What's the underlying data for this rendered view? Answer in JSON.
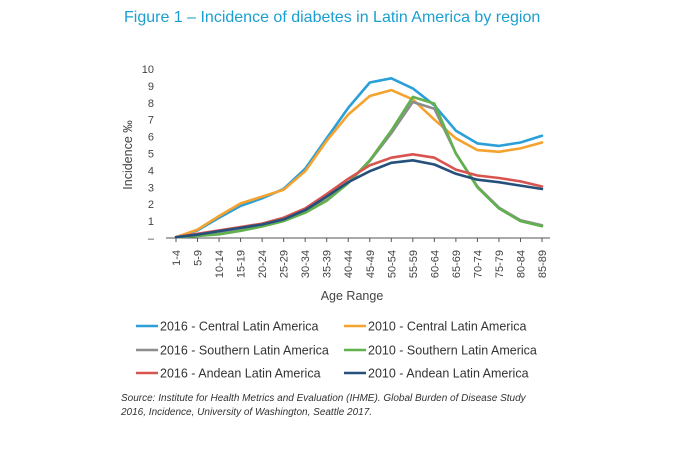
{
  "title": "Figure 1 – Incidence of diabetes in Latin America by region",
  "source": "Source: Institute for Health Metrics and Evaluation (IHME). Global Burden of Disease Study 2016, Incidence, University of Washington, Seattle 2017.",
  "chart_data": {
    "type": "line",
    "title": "Figure 1 – Incidence of diabetes in Latin America by region",
    "xlabel": "Age Range",
    "ylabel": "Incidence ‰",
    "ylim": [
      0,
      10
    ],
    "y_ticks": [
      "–",
      "1",
      "2",
      "3",
      "4",
      "5",
      "6",
      "7",
      "8",
      "9",
      "10"
    ],
    "grid": false,
    "legend_position": "bottom",
    "categories": [
      "1-4",
      "5-9",
      "10-14",
      "15-19",
      "20-24",
      "25-29",
      "30-34",
      "35-39",
      "40-44",
      "45-49",
      "50-54",
      "55-59",
      "60-64",
      "65-69",
      "70-74",
      "75-79",
      "80-84",
      "85-89"
    ],
    "series": [
      {
        "name": "2016 - Central Latin America",
        "color": "#2b9fd8",
        "values": [
          0.05,
          0.45,
          1.2,
          1.9,
          2.35,
          2.9,
          4.1,
          5.9,
          7.7,
          9.2,
          9.45,
          8.85,
          7.85,
          6.35,
          5.6,
          5.45,
          5.65,
          6.05
        ]
      },
      {
        "name": "2010 - Central Latin America",
        "color": "#f5a32e",
        "values": [
          0.05,
          0.5,
          1.3,
          2.05,
          2.45,
          2.85,
          3.95,
          5.75,
          7.3,
          8.4,
          8.75,
          8.2,
          7.0,
          5.9,
          5.2,
          5.1,
          5.3,
          5.65
        ]
      },
      {
        "name": "2016 - Southern Latin America",
        "color": "#8d8d8d",
        "values": [
          0.05,
          0.15,
          0.25,
          0.45,
          0.7,
          1.05,
          1.55,
          2.25,
          3.25,
          4.55,
          6.2,
          8.05,
          7.65,
          5.0,
          3.05,
          1.8,
          1.05,
          0.75
        ]
      },
      {
        "name": "2010 - Southern Latin America",
        "color": "#62b14f",
        "values": [
          0.05,
          0.12,
          0.22,
          0.42,
          0.68,
          1.0,
          1.5,
          2.2,
          3.25,
          4.6,
          6.35,
          8.35,
          7.95,
          5.0,
          3.0,
          1.75,
          1.0,
          0.7
        ]
      },
      {
        "name": "2016 - Andean Latin America",
        "color": "#d9534f",
        "values": [
          0.05,
          0.25,
          0.45,
          0.65,
          0.85,
          1.2,
          1.75,
          2.6,
          3.5,
          4.3,
          4.75,
          4.95,
          4.75,
          4.05,
          3.7,
          3.55,
          3.35,
          3.05
        ]
      },
      {
        "name": "2010 - Andean Latin America",
        "color": "#24507b",
        "values": [
          0.05,
          0.2,
          0.4,
          0.6,
          0.8,
          1.1,
          1.65,
          2.45,
          3.3,
          3.95,
          4.45,
          4.6,
          4.35,
          3.8,
          3.45,
          3.3,
          3.1,
          2.9
        ]
      }
    ]
  }
}
